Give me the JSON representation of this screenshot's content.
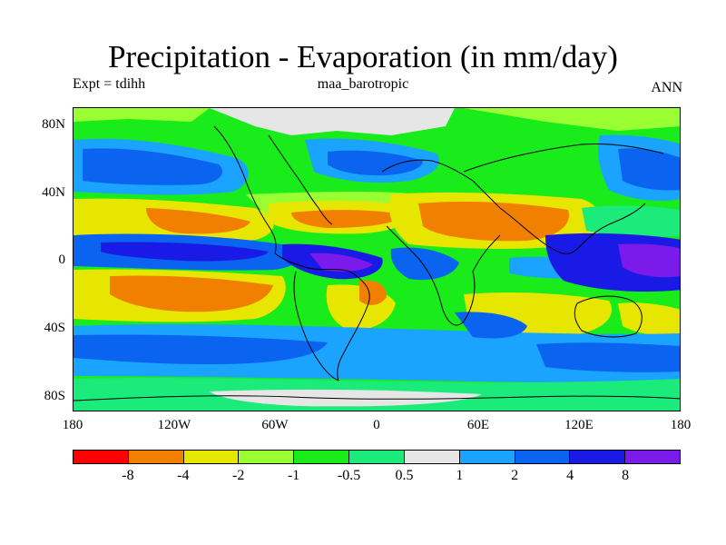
{
  "title": "Precipitation - Evaporation (in mm/day)",
  "subtitle_left": "Expt = tdihh",
  "subtitle_center": "maa_barotropic",
  "subtitle_right": "ANN",
  "y_tick_labels": [
    "80N",
    "40N",
    "0",
    "40S",
    "80S"
  ],
  "x_tick_labels": [
    "180",
    "120W",
    "60W",
    "0",
    "60E",
    "120E",
    "180"
  ],
  "colorbar": {
    "colors": [
      "#ff0000",
      "#f28000",
      "#e6e600",
      "#99ff33",
      "#1aeb1a",
      "#1aeb7a",
      "#e6e6e6",
      "#1aa3ff",
      "#0a64f0",
      "#1a1ae6",
      "#7a1aeb"
    ],
    "labels": [
      "-8",
      "-4",
      "-2",
      "-1",
      "-0.5",
      "0.5",
      "1",
      "2",
      "4",
      "8"
    ]
  }
}
